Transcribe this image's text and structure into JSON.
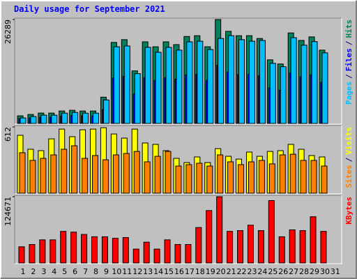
{
  "chart_data": [
    {
      "type": "bar",
      "title": "Daily usage for September 2021",
      "ylim": [
        0,
        26289
      ],
      "yticks": [
        26289
      ],
      "legend_separator": "/",
      "series": [
        {
          "name": "Hits",
          "color": "#00805c",
          "values": [
            1930,
            2280,
            2630,
            2630,
            3150,
            3330,
            3150,
            3150,
            6650,
            20500,
            21200,
            13300,
            20650,
            19400,
            20650,
            19950,
            22000,
            22200,
            19400,
            26289,
            23300,
            22200,
            22200,
            21500,
            16100,
            15050,
            22900,
            21000,
            21900,
            18550,
            0
          ]
        },
        {
          "name": "Files",
          "color": "#0000ff",
          "values": [
            1200,
            1400,
            1600,
            1600,
            1900,
            2000,
            1900,
            1900,
            3500,
            11500,
            11900,
            7500,
            11600,
            10900,
            11600,
            11200,
            12300,
            12400,
            10900,
            14700,
            13000,
            12400,
            12400,
            12000,
            9000,
            8400,
            12800,
            11800,
            12300,
            10400,
            0
          ]
        },
        {
          "name": "Pages",
          "color": "#00c0ff",
          "values": [
            1400,
            1750,
            2100,
            2100,
            2600,
            2800,
            2600,
            2600,
            5950,
            19400,
            19600,
            12600,
            19250,
            18000,
            19250,
            18550,
            20650,
            20800,
            18700,
            21500,
            22200,
            21200,
            20800,
            21000,
            15200,
            14350,
            21700,
            19800,
            20700,
            17850,
            0
          ]
        }
      ]
    },
    {
      "type": "bar",
      "ylim": [
        0,
        612
      ],
      "yticks": [
        612
      ],
      "legend_separator": "/",
      "series": [
        {
          "name": "Visits",
          "color": "#ffff00",
          "values": [
            535,
            406,
            393,
            502,
            592,
            522,
            586,
            592,
            605,
            547,
            509,
            592,
            464,
            451,
            393,
            322,
            283,
            335,
            283,
            412,
            341,
            315,
            380,
            341,
            386,
            393,
            451,
            406,
            348,
            335,
            0
          ]
        },
        {
          "name": "Sites",
          "color": "#ff8000",
          "values": [
            374,
            303,
            322,
            354,
            406,
            438,
            322,
            348,
            309,
            354,
            367,
            386,
            290,
            341,
            386,
            251,
            264,
            277,
            251,
            354,
            290,
            264,
            290,
            303,
            271,
            354,
            360,
            303,
            303,
            251,
            0
          ]
        }
      ]
    },
    {
      "type": "bar",
      "ylim": [
        0,
        124671
      ],
      "yticks": [
        124671
      ],
      "categories": [
        "1",
        "2",
        "3",
        "4",
        "5",
        "6",
        "7",
        "8",
        "9",
        "10",
        "11",
        "12",
        "13",
        "14",
        "15",
        "16",
        "17",
        "18",
        "19",
        "20",
        "21",
        "22",
        "23",
        "24",
        "25",
        "26",
        "27",
        "28",
        "29",
        "30",
        "31"
      ],
      "category_colors": [
        "#000000",
        "#000000",
        "#000000",
        "#00805c",
        "#00805c",
        "#000000",
        "#000000",
        "#000000",
        "#000000",
        "#000000",
        "#00805c",
        "#00805c",
        "#000000",
        "#000000",
        "#000000",
        "#000000",
        "#000000",
        "#00805c",
        "#00805c",
        "#000000",
        "#000000",
        "#000000",
        "#000000",
        "#000000",
        "#00805c",
        "#00805c",
        "#000000",
        "#000000",
        "#000000",
        "#000000",
        "#000000"
      ],
      "series": [
        {
          "name": "KBytes",
          "color": "#ff0000",
          "values": [
            30450,
            34800,
            43500,
            43500,
            59450,
            58000,
            53650,
            49300,
            49300,
            46400,
            47850,
            26100,
            39150,
            26100,
            43500,
            34800,
            34800,
            66700,
            98600,
            124671,
            59450,
            60900,
            71050,
            60900,
            117400,
            49300,
            62350,
            60900,
            87000,
            59450,
            0
          ]
        }
      ]
    }
  ]
}
